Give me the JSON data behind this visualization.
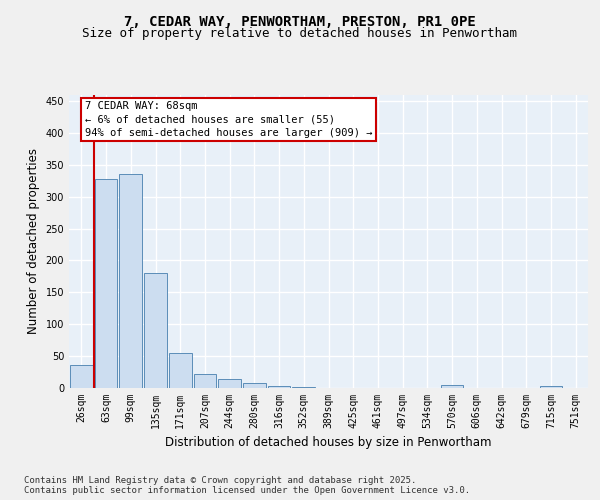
{
  "title_line1": "7, CEDAR WAY, PENWORTHAM, PRESTON, PR1 0PE",
  "title_line2": "Size of property relative to detached houses in Penwortham",
  "xlabel": "Distribution of detached houses by size in Penwortham",
  "ylabel": "Number of detached properties",
  "bins": [
    "26sqm",
    "63sqm",
    "99sqm",
    "135sqm",
    "171sqm",
    "207sqm",
    "244sqm",
    "280sqm",
    "316sqm",
    "352sqm",
    "389sqm",
    "425sqm",
    "461sqm",
    "497sqm",
    "534sqm",
    "570sqm",
    "606sqm",
    "642sqm",
    "679sqm",
    "715sqm",
    "751sqm"
  ],
  "values": [
    35,
    328,
    335,
    180,
    55,
    22,
    13,
    7,
    3,
    1,
    0,
    0,
    0,
    0,
    0,
    4,
    0,
    0,
    0,
    2,
    0
  ],
  "bar_color": "#ccddf0",
  "bar_edge_color": "#5b8db8",
  "vline_color": "#cc0000",
  "vline_x_index": 1,
  "annotation_text": "7 CEDAR WAY: 68sqm\n← 6% of detached houses are smaller (55)\n94% of semi-detached houses are larger (909) →",
  "annotation_box_color": "#ffffff",
  "annotation_box_edge_color": "#cc0000",
  "ylim": [
    0,
    460
  ],
  "yticks": [
    0,
    50,
    100,
    150,
    200,
    250,
    300,
    350,
    400,
    450
  ],
  "background_color": "#e8f0f8",
  "grid_color": "#ffffff",
  "footer_text": "Contains HM Land Registry data © Crown copyright and database right 2025.\nContains public sector information licensed under the Open Government Licence v3.0.",
  "title_fontsize": 10,
  "subtitle_fontsize": 9,
  "axis_label_fontsize": 8.5,
  "tick_fontsize": 7,
  "annotation_fontsize": 7.5,
  "footer_fontsize": 6.5,
  "fig_bg": "#f0f0f0"
}
